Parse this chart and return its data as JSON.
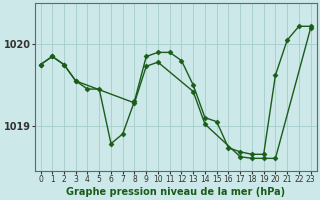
{
  "title": "Graphe pression niveau de la mer (hPa)",
  "bg_color": "#cce8e8",
  "line_color": "#1a5c1a",
  "grid_color": "#aad0d0",
  "x_ticks": [
    0,
    1,
    2,
    3,
    4,
    5,
    6,
    7,
    8,
    9,
    10,
    11,
    12,
    13,
    14,
    15,
    16,
    17,
    18,
    19,
    20,
    21,
    22,
    23
  ],
  "y_ticks": [
    1019,
    1020
  ],
  "ylim": [
    1018.45,
    1020.5
  ],
  "xlim": [
    -0.5,
    23.5
  ],
  "line1_x": [
    0,
    1,
    2,
    3,
    4,
    5,
    6,
    7,
    8,
    9,
    10,
    11,
    12,
    13,
    14,
    15,
    16,
    17,
    18,
    19,
    20,
    21,
    22,
    23
  ],
  "line1_y": [
    1019.75,
    1019.85,
    1019.75,
    1019.55,
    1019.45,
    1019.45,
    1018.78,
    1018.9,
    1019.3,
    1019.85,
    1019.9,
    1019.9,
    1019.8,
    1019.5,
    1019.1,
    1019.05,
    1018.73,
    1018.68,
    1018.65,
    1018.65,
    1019.62,
    1020.05,
    1020.22,
    1020.22
  ],
  "line2_x": [
    0,
    1,
    2,
    3,
    8,
    9,
    10,
    13,
    14,
    17,
    18,
    19,
    20,
    23
  ],
  "line2_y": [
    1019.75,
    1019.85,
    1019.75,
    1019.55,
    1019.28,
    1019.73,
    1019.78,
    1019.42,
    1019.02,
    1018.62,
    1018.6,
    1018.6,
    1018.6,
    1020.2
  ]
}
